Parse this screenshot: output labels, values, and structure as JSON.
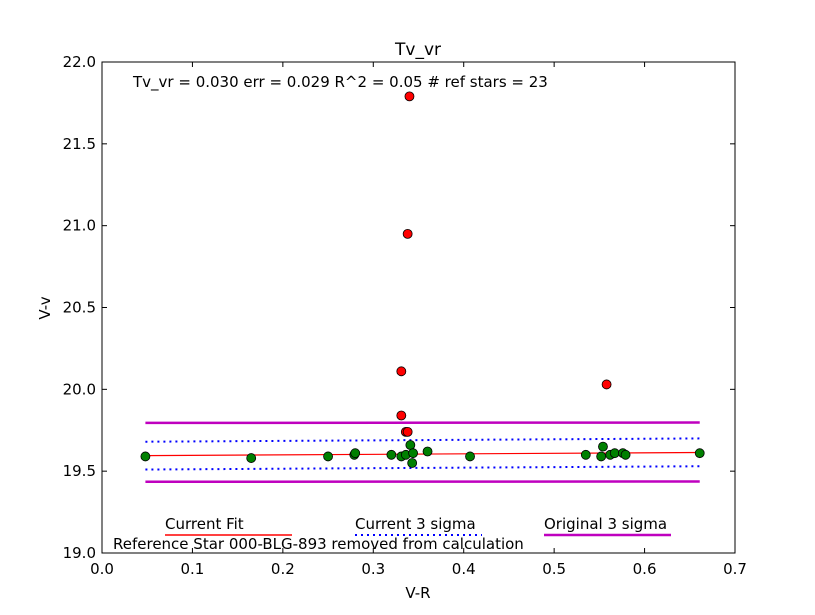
{
  "chart_data": {
    "type": "scatter",
    "title": "Tv_vr",
    "xlabel": "V-R",
    "ylabel": "V-v",
    "xlim": [
      0.0,
      0.7
    ],
    "ylim": [
      19.0,
      22.0
    ],
    "xticks": [
      "0.0",
      "0.1",
      "0.2",
      "0.3",
      "0.4",
      "0.5",
      "0.6",
      "0.7"
    ],
    "yticks": [
      "19.0",
      "19.5",
      "20.0",
      "20.5",
      "21.0",
      "21.5",
      "22.0"
    ],
    "annotation": "Tv_vr =  0.030 err = 0.029  R^2 = 0.05  # ref stars =  23",
    "footnote": "Reference Star 000-BLG-893 removed from calculation",
    "legend": [
      "Current Fit",
      "Current 3 sigma",
      "Original 3 sigma"
    ],
    "used_points": {
      "color": "#008000",
      "x": [
        0.048,
        0.165,
        0.25,
        0.279,
        0.28,
        0.32,
        0.331,
        0.336,
        0.341,
        0.344,
        0.343,
        0.36,
        0.407,
        0.535,
        0.554,
        0.552,
        0.562,
        0.567,
        0.576,
        0.579,
        0.661
      ],
      "y": [
        19.59,
        19.58,
        19.59,
        19.6,
        19.61,
        19.6,
        19.59,
        19.6,
        19.66,
        19.61,
        19.55,
        19.62,
        19.59,
        19.6,
        19.65,
        19.59,
        19.6,
        19.61,
        19.61,
        19.6,
        19.61
      ]
    },
    "rejected_points": {
      "color": "#ff0000",
      "x": [
        0.34,
        0.338,
        0.331,
        0.331,
        0.336,
        0.338,
        0.558
      ],
      "y": [
        21.79,
        20.95,
        20.11,
        19.84,
        19.74,
        19.74,
        20.03
      ]
    },
    "fit": {
      "color": "#ff0000",
      "x": [
        0.048,
        0.661
      ],
      "y": [
        19.595,
        19.614
      ]
    },
    "current_sigma": {
      "color": "#0000ff",
      "x": [
        0.048,
        0.661
      ],
      "upper": [
        19.68,
        19.7
      ],
      "lower": [
        19.51,
        19.53
      ]
    },
    "original_sigma": {
      "color": "#bf00bf",
      "x": [
        0.048,
        0.661
      ],
      "upper": [
        19.795,
        19.797
      ],
      "lower": [
        19.435,
        19.437
      ]
    }
  }
}
